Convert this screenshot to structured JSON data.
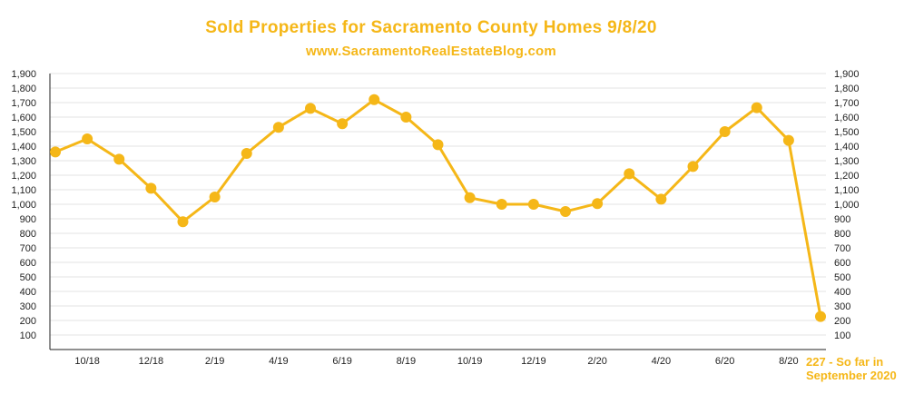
{
  "title": "Sold Properties for Sacramento County Homes 9/8/20",
  "subtitle": "www.SacramentoRealEstateBlog.com",
  "annotation": {
    "line1": "227 - So far in",
    "line2": "September 2020"
  },
  "colors": {
    "accent": "#f5b718",
    "grid": "#e3e3e3",
    "axis": "#222222",
    "tick_text": "#222222"
  },
  "chart_data": {
    "type": "line",
    "title": "Sold Properties for Sacramento County Homes 9/8/20",
    "subtitle": "www.SacramentoRealEstateBlog.com",
    "xlabel": "",
    "ylabel": "",
    "x": [
      "9/18",
      "10/18",
      "11/18",
      "12/18",
      "1/19",
      "2/19",
      "3/19",
      "4/19",
      "5/19",
      "6/19",
      "7/19",
      "8/19",
      "9/19",
      "10/19",
      "11/19",
      "12/19",
      "1/20",
      "2/20",
      "3/20",
      "4/20",
      "5/20",
      "6/20",
      "7/20",
      "8/20",
      "9/20"
    ],
    "x_tick_labels": [
      "10/18",
      "12/18",
      "2/19",
      "4/19",
      "6/19",
      "8/19",
      "10/19",
      "12/19",
      "2/20",
      "4/20",
      "6/20",
      "8/20"
    ],
    "series": [
      {
        "values": [
          1360,
          1450,
          1310,
          1110,
          880,
          1050,
          1350,
          1530,
          1660,
          1555,
          1720,
          1600,
          1410,
          1045,
          1000,
          1000,
          950,
          1005,
          1210,
          1035,
          1260,
          1500,
          1665,
          1440,
          227
        ]
      }
    ],
    "ylim": [
      0,
      1900
    ],
    "y_ticks": [
      100,
      200,
      300,
      400,
      500,
      600,
      700,
      800,
      900,
      1000,
      1100,
      1200,
      1300,
      1400,
      1500,
      1600,
      1700,
      1800,
      1900
    ],
    "y_tick_labels": [
      "100",
      "200",
      "300",
      "400",
      "500",
      "600",
      "700",
      "800",
      "900",
      "1,000",
      "1,100",
      "1,200",
      "1,300",
      "1,400",
      "1,500",
      "1,600",
      "1,700",
      "1,800",
      "1,900"
    ],
    "grid": true,
    "dual_y_axis": true,
    "legend": "none"
  }
}
